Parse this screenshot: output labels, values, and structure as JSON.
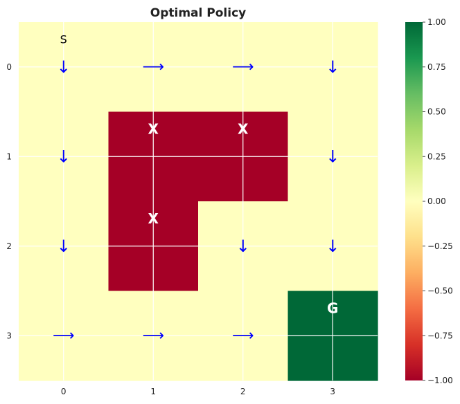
{
  "chart_data": {
    "type": "heatmap",
    "title": "Optimal Policy",
    "xlabel": "",
    "ylabel": "",
    "x_ticks": [
      "0",
      "1",
      "2",
      "3"
    ],
    "y_ticks": [
      "0",
      "1",
      "2",
      "3"
    ],
    "values": [
      [
        0,
        0,
        0,
        0
      ],
      [
        0,
        -1,
        -1,
        0
      ],
      [
        0,
        -1,
        0,
        0
      ],
      [
        0,
        0,
        0,
        1
      ]
    ],
    "policy": [
      [
        "down",
        "right",
        "right",
        "down"
      ],
      [
        "down",
        "",
        "",
        "down"
      ],
      [
        "down",
        "",
        "down",
        "down"
      ],
      [
        "right",
        "right",
        "right",
        ""
      ]
    ],
    "cell_labels": [
      [
        "S",
        "",
        "",
        ""
      ],
      [
        "",
        "X",
        "X",
        ""
      ],
      [
        "",
        "X",
        "",
        ""
      ],
      [
        "",
        "",
        "",
        "G"
      ]
    ],
    "arrow_glyphs": {
      "down": "↓",
      "right": "⟶"
    },
    "colorbar": {
      "ticks": [
        "1.00",
        "0.75",
        "0.50",
        "0.25",
        "0.00",
        "−0.25",
        "−0.50",
        "−0.75",
        "−1.00"
      ],
      "range": [
        -1,
        1
      ],
      "colormap": [
        "#a50026",
        "#d73027",
        "#f46d43",
        "#fdae61",
        "#fee08b",
        "#ffffbf",
        "#d9ef8b",
        "#a6d96a",
        "#66bd63",
        "#1a9850",
        "#006837"
      ]
    },
    "grid": true,
    "colors": {
      "empty": "#ffffbf",
      "obstacle": "#a50026",
      "goal": "#006837",
      "arrow": "#0000ff",
      "grid": "#ffffff"
    }
  }
}
